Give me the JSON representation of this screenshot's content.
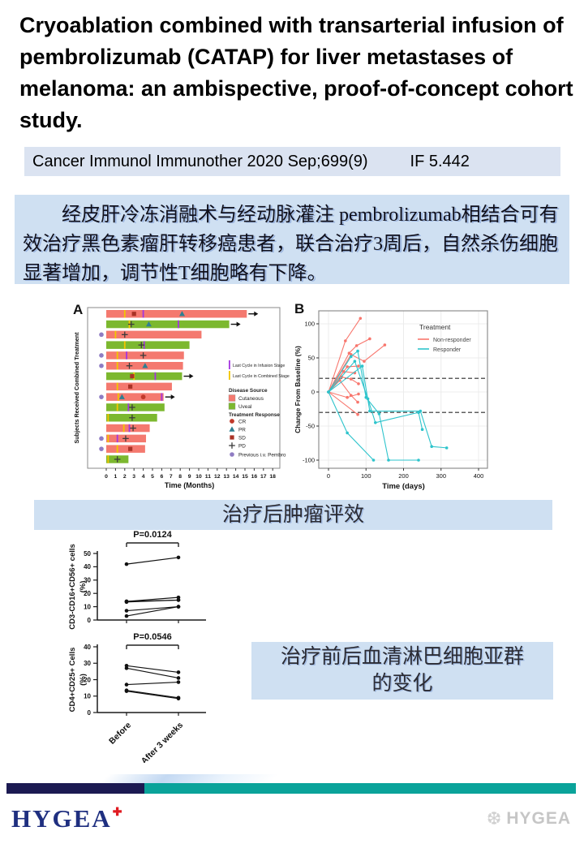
{
  "title": "Cryoablation combined with transarterial infusion of pembrolizumab (CATAP) for liver metastases of melanoma: an ambispective, proof-of-concept cohort study.",
  "citation": {
    "journal": "Cancer Immunol Immunother 2020 Sep;699(9)",
    "impact_factor": "IF 5.442"
  },
  "summary_cn": "经皮肝冷冻消融术与经动脉灌注 pembrolizumab相结合可有效治疗黑色素瘤肝转移癌患者，联合治疗3周后，自然杀伤细胞显著增加，调节性T细胞略有下降。",
  "captions": {
    "tumor_response": "治疗后肿瘤评效",
    "lymphocyte_line1": "治疗前后血清淋巴细胞亚群",
    "lymphocyte_line2": "的变化"
  },
  "footer": {
    "logo_text": "HYGEA",
    "watermark_text": "HYGEA"
  },
  "icons": {
    "logo_cross": "✚",
    "watermark_emblem": "❆"
  },
  "colors": {
    "cutaneous": "#f4796f",
    "uveal": "#7cb82f",
    "infusion_stage": "#a435e0",
    "combined_stage": "#f2c500",
    "cr": "#c0392b",
    "pr": "#2e7f92",
    "sd": "#a93226",
    "pd": "#3b3b3b",
    "prev_pembro": "#8f7cc3",
    "non_responder": "#f8766d",
    "responder": "#2ec4cc",
    "caption_bg": "#cfe0f2",
    "citation_bg": "#dbe3f1",
    "footer_navy": "#1c1a52",
    "footer_teal": "#0aa39a",
    "logo_navy": "#1f2f80"
  },
  "chart_data": [
    {
      "type": "bar",
      "panel": "A",
      "orientation": "horizontal-swimmer",
      "xlabel": "Time (Months)",
      "ylabel": "Subjects Received Combined Treatment",
      "xticks": [
        0,
        1,
        2,
        3,
        4,
        5,
        6,
        7,
        8,
        9,
        10,
        11,
        12,
        13,
        14,
        15,
        16,
        17,
        18
      ],
      "xlim": [
        0,
        18.6
      ],
      "legend": {
        "last_cycle_infusion": "Last Cycle in Infusion Stage",
        "last_cycle_combined": "Last Cycle in Combined Stage",
        "disease_source_title": "Disease Source",
        "sources": [
          "Cutaneous",
          "Uveal"
        ],
        "response_title": "Treatment Response",
        "responses": [
          "CR",
          "PR",
          "SD",
          "PD"
        ],
        "previous": "Previous i.v. Pembro"
      },
      "subjects": [
        {
          "source": "Cutaneous",
          "length": 15.2,
          "ongoing": true,
          "prev_pembro": false,
          "combined_end": 2.0,
          "infusion_end": 4.0,
          "marks": [
            {
              "t": 3.0,
              "r": "SD"
            },
            {
              "t": 8.2,
              "r": "PR"
            }
          ]
        },
        {
          "source": "Uveal",
          "length": 13.3,
          "ongoing": true,
          "prev_pembro": false,
          "combined_end": 2.5,
          "infusion_end": 7.8,
          "marks": [
            {
              "t": 2.7,
              "r": "PD"
            },
            {
              "t": 4.6,
              "r": "PR"
            }
          ]
        },
        {
          "source": "Cutaneous",
          "length": 10.3,
          "ongoing": false,
          "prev_pembro": true,
          "combined_end": 1.0,
          "infusion_end": null,
          "marks": [
            {
              "t": 2.0,
              "r": "PD"
            }
          ]
        },
        {
          "source": "Uveal",
          "length": 9.0,
          "ongoing": false,
          "prev_pembro": false,
          "combined_end": 2.0,
          "infusion_end": 4.1,
          "marks": [
            {
              "t": 3.8,
              "r": "PD"
            }
          ]
        },
        {
          "source": "Cutaneous",
          "length": 8.4,
          "ongoing": false,
          "prev_pembro": true,
          "combined_end": 1.2,
          "infusion_end": 2.2,
          "marks": [
            {
              "t": 4.0,
              "r": "PD"
            }
          ]
        },
        {
          "source": "Cutaneous",
          "length": 8.3,
          "ongoing": false,
          "prev_pembro": true,
          "combined_end": 1.2,
          "infusion_end": null,
          "marks": [
            {
              "t": 2.5,
              "r": "PD"
            },
            {
              "t": 4.2,
              "r": "PR"
            }
          ]
        },
        {
          "source": "Uveal",
          "length": 8.2,
          "ongoing": true,
          "prev_pembro": false,
          "combined_end": 3.0,
          "infusion_end": 5.3,
          "marks": [
            {
              "t": 2.8,
              "r": "SD"
            }
          ]
        },
        {
          "source": "Cutaneous",
          "length": 7.1,
          "ongoing": false,
          "prev_pembro": false,
          "combined_end": 1.2,
          "infusion_end": null,
          "marks": [
            {
              "t": 2.6,
              "r": "SD"
            }
          ]
        },
        {
          "source": "Cutaneous",
          "length": 6.2,
          "ongoing": true,
          "prev_pembro": true,
          "combined_end": 1.3,
          "infusion_end": 6.0,
          "marks": [
            {
              "t": 1.7,
              "r": "PR"
            },
            {
              "t": 4.0,
              "r": "CR"
            }
          ]
        },
        {
          "source": "Uveal",
          "length": 6.3,
          "ongoing": false,
          "prev_pembro": false,
          "combined_end": 1.2,
          "infusion_end": 2.4,
          "marks": [
            {
              "t": 2.8,
              "r": "PD"
            }
          ]
        },
        {
          "source": "Uveal",
          "length": 5.5,
          "ongoing": false,
          "prev_pembro": false,
          "combined_end": 0.2,
          "infusion_end": null,
          "marks": [
            {
              "t": 2.8,
              "r": "PD"
            }
          ]
        },
        {
          "source": "Cutaneous",
          "length": 4.7,
          "ongoing": false,
          "prev_pembro": false,
          "combined_end": 1.9,
          "infusion_end": 2.5,
          "marks": [
            {
              "t": 2.9,
              "r": "PD"
            }
          ]
        },
        {
          "source": "Cutaneous",
          "length": 4.3,
          "ongoing": false,
          "prev_pembro": true,
          "combined_end": 0.2,
          "infusion_end": 1.2,
          "marks": [
            {
              "t": 2.1,
              "r": "PD"
            }
          ]
        },
        {
          "source": "Cutaneous",
          "length": 4.2,
          "ongoing": false,
          "prev_pembro": true,
          "combined_end": 1.2,
          "infusion_end": null,
          "marks": [
            {
              "t": 2.6,
              "r": "SD"
            }
          ]
        },
        {
          "source": "Uveal",
          "length": 2.4,
          "ongoing": false,
          "prev_pembro": false,
          "combined_end": 0.2,
          "infusion_end": null,
          "marks": [
            {
              "t": 1.2,
              "r": "PD"
            }
          ]
        }
      ]
    },
    {
      "type": "line",
      "panel": "B",
      "xlabel": "Time (days)",
      "ylabel": "Change From Baseline (%)",
      "xticks": [
        0,
        100,
        200,
        300,
        400
      ],
      "yticks": [
        -100,
        -50,
        0,
        50,
        100
      ],
      "xlim": [
        -20,
        430
      ],
      "ylim": [
        -112,
        119
      ],
      "dashed_reference_lines": [
        20,
        -30
      ],
      "legend_title": "Treatment",
      "grid": true,
      "groups": [
        {
          "name": "Non-responder",
          "color_key": "non_responder",
          "lines": [
            [
              [
                0,
                0
              ],
              [
                45,
                75
              ],
              [
                85,
                108
              ]
            ],
            [
              [
                0,
                0
              ],
              [
                55,
                57
              ],
              [
                75,
                68
              ],
              [
                110,
                78
              ]
            ],
            [
              [
                0,
                0
              ],
              [
                60,
                55
              ],
              [
                95,
                45
              ],
              [
                150,
                69
              ]
            ],
            [
              [
                0,
                0
              ],
              [
                50,
                37
              ],
              [
                80,
                38
              ]
            ],
            [
              [
                0,
                0
              ],
              [
                40,
                30
              ],
              [
                70,
                28
              ]
            ],
            [
              [
                0,
                0
              ],
              [
                35,
                22
              ],
              [
                60,
                19
              ],
              [
                80,
                12
              ]
            ],
            [
              [
                0,
                0
              ],
              [
                30,
                17
              ],
              [
                60,
                -5
              ],
              [
                78,
                -15
              ]
            ],
            [
              [
                0,
                0
              ],
              [
                50,
                -8
              ],
              [
                80,
                -3
              ]
            ],
            [
              [
                0,
                0
              ],
              [
                78,
                -33
              ]
            ]
          ]
        },
        {
          "name": "Responder",
          "color_key": "responder",
          "lines": [
            [
              [
                0,
                0
              ],
              [
                50,
                -60
              ],
              [
                120,
                -100
              ]
            ],
            [
              [
                0,
                0
              ],
              [
                60,
                52
              ],
              [
                78,
                60
              ],
              [
                100,
                -8
              ],
              [
                135,
                -32
              ],
              [
                160,
                -100
              ],
              [
                240,
                -100
              ]
            ],
            [
              [
                0,
                0
              ],
              [
                70,
                45
              ],
              [
                105,
                -10
              ],
              [
                125,
                -45
              ],
              [
                240,
                -30
              ],
              [
                250,
                -55
              ]
            ],
            [
              [
                0,
                0
              ],
              [
                90,
                38
              ],
              [
                110,
                -28
              ],
              [
                245,
                -28
              ],
              [
                275,
                -80
              ],
              [
                315,
                -82
              ]
            ]
          ]
        }
      ]
    },
    {
      "type": "line",
      "subtype": "paired",
      "p_value": "P=0.0124",
      "ylabel_line1": "CD3-CD16+CD56+ cells",
      "ylabel_line2": "(%)",
      "yticks": [
        0,
        10,
        20,
        30,
        40,
        50
      ],
      "ylim": [
        0,
        50
      ],
      "categories": [
        "Before",
        "After 3 weeks"
      ],
      "show_x_labels": false,
      "pairs": [
        [
          42,
          47
        ],
        [
          14,
          17
        ],
        [
          14,
          15
        ],
        [
          13.5,
          15
        ],
        [
          7,
          10
        ],
        [
          3,
          10
        ]
      ]
    },
    {
      "type": "line",
      "subtype": "paired",
      "p_value": "P=0.0546",
      "ylabel_line1": "CD4+CD25+ Cells",
      "ylabel_line2": "(%)",
      "yticks": [
        0,
        10,
        20,
        30,
        40
      ],
      "ylim": [
        0,
        40
      ],
      "categories": [
        "Before",
        "After 3 weeks"
      ],
      "show_x_labels": true,
      "pairs": [
        [
          28.5,
          24.5
        ],
        [
          27,
          21
        ],
        [
          17,
          18.5
        ],
        [
          13.5,
          9
        ],
        [
          13,
          8.5
        ]
      ]
    }
  ]
}
